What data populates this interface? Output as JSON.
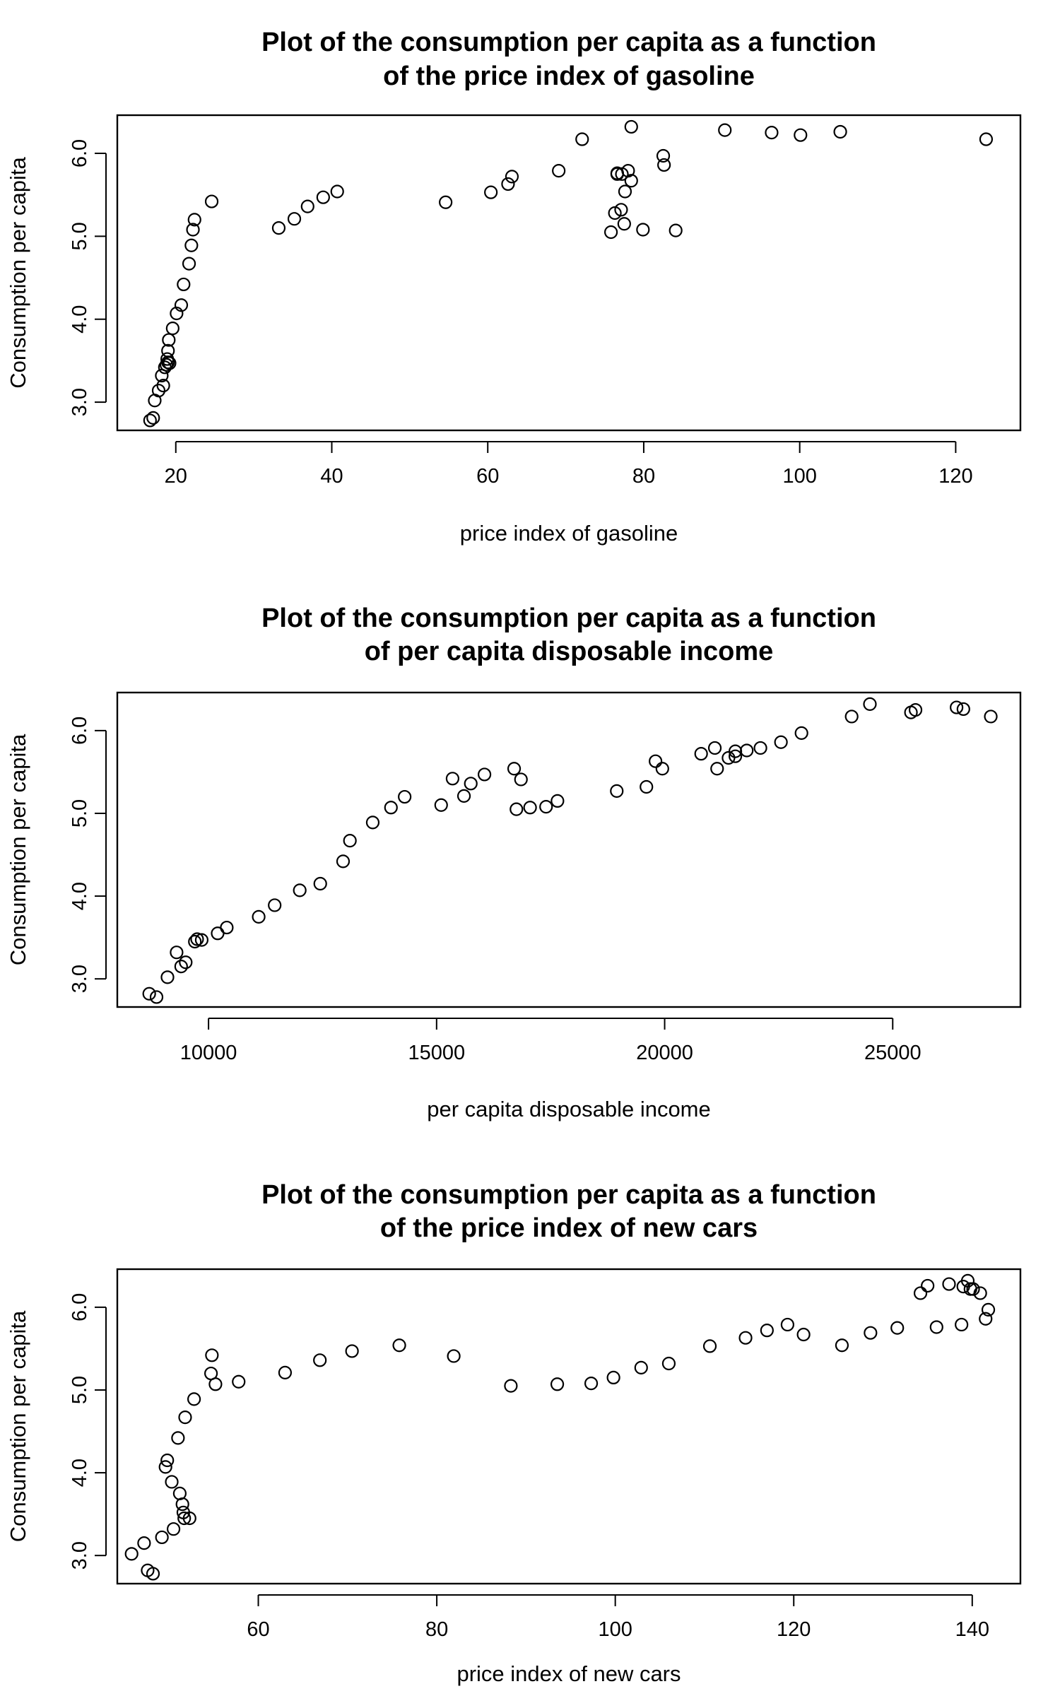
{
  "chart_data": [
    {
      "type": "scatter",
      "title": [
        "Plot of the consumption per capita as a function",
        "of the price index of gasoline"
      ],
      "xlabel": "price index of gasoline",
      "ylabel": "Consumption per capita",
      "xlim": [
        12.5,
        128.3
      ],
      "ylim": [
        2.66,
        6.46
      ],
      "xticks": [
        20,
        40,
        60,
        80,
        100,
        120
      ],
      "yticks": [
        3.0,
        4.0,
        5.0,
        6.0
      ],
      "xtick_labels": [
        "20",
        "40",
        "60",
        "80",
        100,
        120
      ],
      "ytick_labels": [
        "3.0",
        "4.0",
        "5.0",
        "6.0"
      ],
      "x": [
        16.7,
        17.1,
        17.3,
        17.8,
        18.2,
        18.4,
        18.6,
        18.8,
        18.9,
        19.0,
        19.0,
        19.1,
        19.2,
        19.6,
        20.1,
        20.7,
        21.0,
        21.7,
        22.0,
        22.2,
        22.4,
        24.6,
        33.2,
        35.2,
        36.9,
        38.9,
        40.7,
        54.6,
        60.4,
        62.6,
        63.1,
        69.1,
        72.1,
        75.8,
        76.3,
        76.6,
        76.6,
        77.1,
        77.2,
        77.5,
        77.6,
        78.0,
        78.4,
        78.4,
        79.9,
        82.5,
        82.6,
        84.1,
        90.4,
        96.4,
        100.1,
        105.2,
        123.9
      ],
      "y": [
        2.78,
        2.81,
        3.02,
        3.14,
        3.32,
        3.2,
        3.42,
        3.45,
        3.52,
        3.48,
        3.62,
        3.75,
        3.47,
        3.89,
        4.07,
        4.17,
        4.42,
        4.67,
        4.89,
        5.08,
        5.2,
        5.42,
        5.1,
        5.21,
        5.36,
        5.47,
        5.54,
        5.41,
        5.53,
        5.63,
        5.72,
        5.79,
        6.17,
        5.05,
        5.28,
        5.76,
        5.75,
        5.32,
        5.75,
        5.15,
        5.54,
        5.79,
        6.32,
        5.67,
        5.08,
        5.97,
        5.86,
        5.07,
        6.28,
        6.25,
        6.22,
        6.26,
        6.17
      ]
    },
    {
      "type": "scatter",
      "title": [
        "Plot of the consumption per capita as a function",
        "of per capita disposable income"
      ],
      "xlabel": "per capita disposable income",
      "ylabel": "Consumption per capita",
      "xlim": [
        8000,
        27800
      ],
      "ylim": [
        2.66,
        6.46
      ],
      "xticks": [
        10000,
        15000,
        20000,
        25000
      ],
      "yticks": [
        3.0,
        4.0,
        5.0,
        6.0
      ],
      "xtick_labels": [
        "10000",
        "15000",
        "20000",
        "25000"
      ],
      "ytick_labels": [
        "3.0",
        "4.0",
        "5.0",
        "6.0"
      ],
      "x": [
        8700,
        8860,
        9100,
        9300,
        9400,
        9500,
        9700,
        9750,
        9850,
        10200,
        10400,
        11100,
        11450,
        12000,
        12450,
        12950,
        13100,
        13600,
        14000,
        14300,
        15100,
        15350,
        15600,
        15750,
        16050,
        16700,
        16750,
        16850,
        17050,
        17400,
        17650,
        18950,
        19600,
        19800,
        19950,
        20800,
        21100,
        21150,
        21400,
        21550,
        21550,
        21800,
        22100,
        22550,
        23000,
        24100,
        24500,
        25400,
        25500,
        26400,
        26550,
        27150
      ],
      "y": [
        2.82,
        2.78,
        3.02,
        3.32,
        3.15,
        3.2,
        3.45,
        3.48,
        3.47,
        3.55,
        3.62,
        3.75,
        3.89,
        4.07,
        4.15,
        4.42,
        4.67,
        4.89,
        5.07,
        5.2,
        5.1,
        5.42,
        5.21,
        5.36,
        5.47,
        5.54,
        5.05,
        5.41,
        5.07,
        5.08,
        5.15,
        5.27,
        5.32,
        5.63,
        5.54,
        5.72,
        5.79,
        5.54,
        5.67,
        5.69,
        5.75,
        5.76,
        5.79,
        5.86,
        5.97,
        6.17,
        6.32,
        6.22,
        6.25,
        6.28,
        6.26,
        6.17
      ]
    },
    {
      "type": "scatter",
      "title": [
        "Plot of the consumption per capita as a function",
        "of the price index of new cars"
      ],
      "xlabel": "price index of new cars",
      "ylabel": "Consumption per capita",
      "xlim": [
        44.2,
        145.4
      ],
      "ylim": [
        2.66,
        6.46
      ],
      "xticks": [
        60,
        80,
        100,
        120,
        140
      ],
      "yticks": [
        3.0,
        4.0,
        5.0,
        6.0
      ],
      "xtick_labels": [
        "60",
        "80",
        "100",
        "120",
        "140"
      ],
      "ytick_labels": [
        "3.0",
        "4.0",
        "5.0",
        "6.0"
      ],
      "x": [
        45.8,
        47.2,
        47.6,
        48.2,
        49.2,
        49.6,
        49.8,
        50.3,
        50.5,
        51.0,
        51.2,
        51.5,
        51.6,
        51.7,
        51.8,
        52.3,
        52.8,
        54.7,
        54.8,
        55.2,
        57.8,
        63.0,
        66.9,
        70.5,
        75.8,
        81.9,
        88.3,
        93.5,
        97.3,
        99.8,
        102.9,
        106.0,
        110.6,
        114.6,
        117.0,
        119.3,
        121.1,
        125.4,
        128.6,
        131.6,
        134.2,
        135.0,
        136.0,
        137.4,
        138.8,
        139.0,
        139.5,
        139.8,
        140.1,
        140.9,
        141.5,
        141.8
      ],
      "y": [
        3.02,
        3.15,
        2.82,
        2.78,
        3.22,
        4.07,
        4.15,
        3.89,
        3.32,
        4.42,
        3.75,
        3.62,
        3.52,
        3.45,
        4.67,
        3.45,
        4.89,
        5.2,
        5.42,
        5.07,
        5.1,
        5.21,
        5.36,
        5.47,
        5.54,
        5.41,
        5.05,
        5.07,
        5.08,
        5.15,
        5.27,
        5.32,
        5.53,
        5.63,
        5.72,
        5.79,
        5.67,
        5.54,
        5.69,
        5.75,
        6.17,
        6.26,
        5.76,
        6.28,
        5.79,
        6.25,
        6.32,
        6.22,
        6.22,
        6.17,
        5.86,
        5.97
      ]
    }
  ]
}
